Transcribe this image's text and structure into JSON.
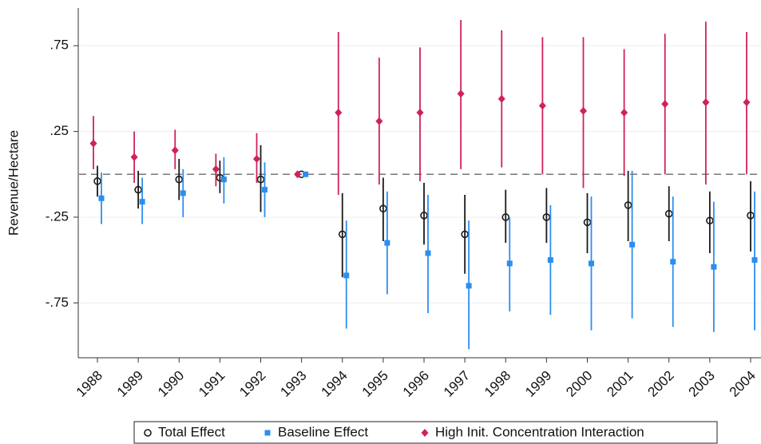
{
  "chart_data": {
    "type": "errorbar",
    "y_label": "Revenue/Hectare",
    "categories": [
      "1988",
      "1989",
      "1990",
      "1991",
      "1992",
      "1993",
      "1994",
      "1995",
      "1996",
      "1997",
      "1998",
      "1999",
      "2000",
      "2001",
      "2002",
      "2003",
      "2004"
    ],
    "ylim": [
      -1.07,
      0.97
    ],
    "yticks": [
      {
        "value": 0.75,
        "label": ".75"
      },
      {
        "value": 0.25,
        "label": ".25"
      },
      {
        "value": -0.25,
        "label": "-.25"
      },
      {
        "value": -0.75,
        "label": "-.75"
      }
    ],
    "grid": true,
    "hline": 0,
    "legend": "bottom",
    "series": [
      {
        "name": "Total Effect",
        "color": "#1a1a1a",
        "marker": "circle",
        "values": [
          -0.04,
          -0.09,
          -0.03,
          -0.02,
          -0.03,
          0,
          -0.35,
          -0.2,
          -0.24,
          -0.35,
          -0.25,
          -0.25,
          -0.28,
          -0.18,
          -0.23,
          -0.27,
          -0.24
        ],
        "lower": [
          -0.13,
          -0.2,
          -0.15,
          -0.11,
          -0.22,
          null,
          -0.6,
          -0.39,
          -0.41,
          -0.58,
          -0.4,
          -0.4,
          -0.46,
          -0.39,
          -0.39,
          -0.46,
          -0.45
        ],
        "upper": [
          0.05,
          0.02,
          0.09,
          0.08,
          0.17,
          null,
          -0.11,
          -0.02,
          -0.05,
          -0.12,
          -0.09,
          -0.08,
          -0.11,
          0.02,
          -0.07,
          -0.1,
          -0.04
        ]
      },
      {
        "name": "Baseline Effect",
        "color": "#2b8ef0",
        "marker": "square",
        "values": [
          -0.14,
          -0.16,
          -0.11,
          -0.03,
          -0.09,
          0,
          -0.59,
          -0.4,
          -0.46,
          -0.65,
          -0.52,
          -0.5,
          -0.52,
          -0.41,
          -0.51,
          -0.54,
          -0.5
        ],
        "lower": [
          -0.29,
          -0.29,
          -0.25,
          -0.17,
          -0.25,
          null,
          -0.9,
          -0.7,
          -0.81,
          -1.02,
          -0.8,
          -0.82,
          -0.91,
          -0.84,
          -0.89,
          -0.92,
          -0.91
        ],
        "upper": [
          0.01,
          -0.02,
          0.03,
          0.1,
          0.07,
          null,
          -0.27,
          -0.1,
          -0.12,
          -0.27,
          -0.25,
          -0.18,
          -0.13,
          0.02,
          -0.13,
          -0.16,
          -0.1
        ]
      },
      {
        "name": "High Init. Concentration Interaction",
        "color": "#d0215a",
        "marker": "diamond",
        "values": [
          0.18,
          0.1,
          0.14,
          0.03,
          0.09,
          0,
          0.36,
          0.31,
          0.36,
          0.47,
          0.44,
          0.4,
          0.37,
          0.36,
          0.41,
          0.42,
          0.42
        ],
        "lower": [
          0.03,
          -0.05,
          0.03,
          -0.07,
          -0.05,
          null,
          -0.12,
          -0.06,
          -0.04,
          0.03,
          0.04,
          0,
          -0.08,
          -0.01,
          0,
          -0.06,
          0
        ],
        "upper": [
          0.34,
          0.25,
          0.26,
          0.12,
          0.24,
          null,
          0.83,
          0.68,
          0.74,
          0.9,
          0.84,
          0.8,
          0.8,
          0.73,
          0.82,
          0.89,
          0.83
        ]
      }
    ]
  }
}
